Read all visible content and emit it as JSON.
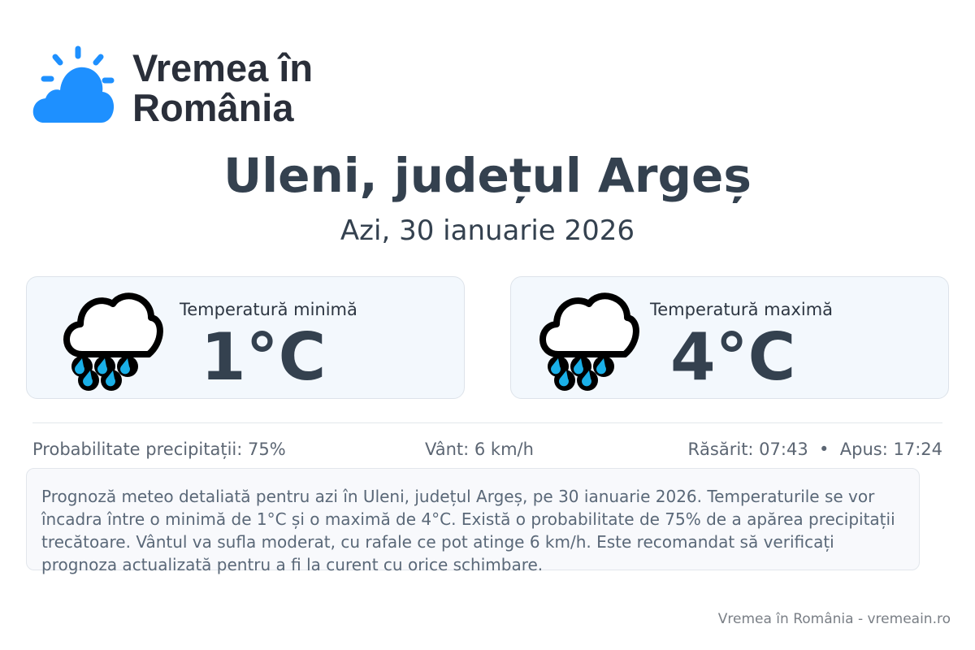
{
  "brand": {
    "name_line1": "Vremea în",
    "name_line2": "România",
    "color": "#1e90ff"
  },
  "location": {
    "title": "Uleni, județul Argeș",
    "date": "Azi, 30 ianuarie 2026"
  },
  "cards": [
    {
      "label": "Temperatură minimă",
      "value": "1°C",
      "icon": "rain-cloud-icon"
    },
    {
      "label": "Temperatură maximă",
      "value": "4°C",
      "icon": "rain-cloud-icon"
    }
  ],
  "stats": {
    "precipitation": "Probabilitate precipitații: 75%",
    "wind": "Vânt: 6 km/h",
    "sun": "Răsărit: 07:43  •  Apus: 17:24"
  },
  "description": "Prognoză meteo detaliată pentru azi în Uleni, județul Argeș, pe 30 ianuarie 2026. Temperaturile se vor încadra între o minimă de 1°C și o maximă de 4°C. Există o probabilitate de 75% de a apărea precipitații trecătoare. Vântul va sufla moderat, cu rafale ce pot atinge 6 km/h. Este recomandat să verificați prognoza actualizată pentru a fi la curent cu orice schimbare.",
  "footer": "Vremea în România - vremeain.ro"
}
